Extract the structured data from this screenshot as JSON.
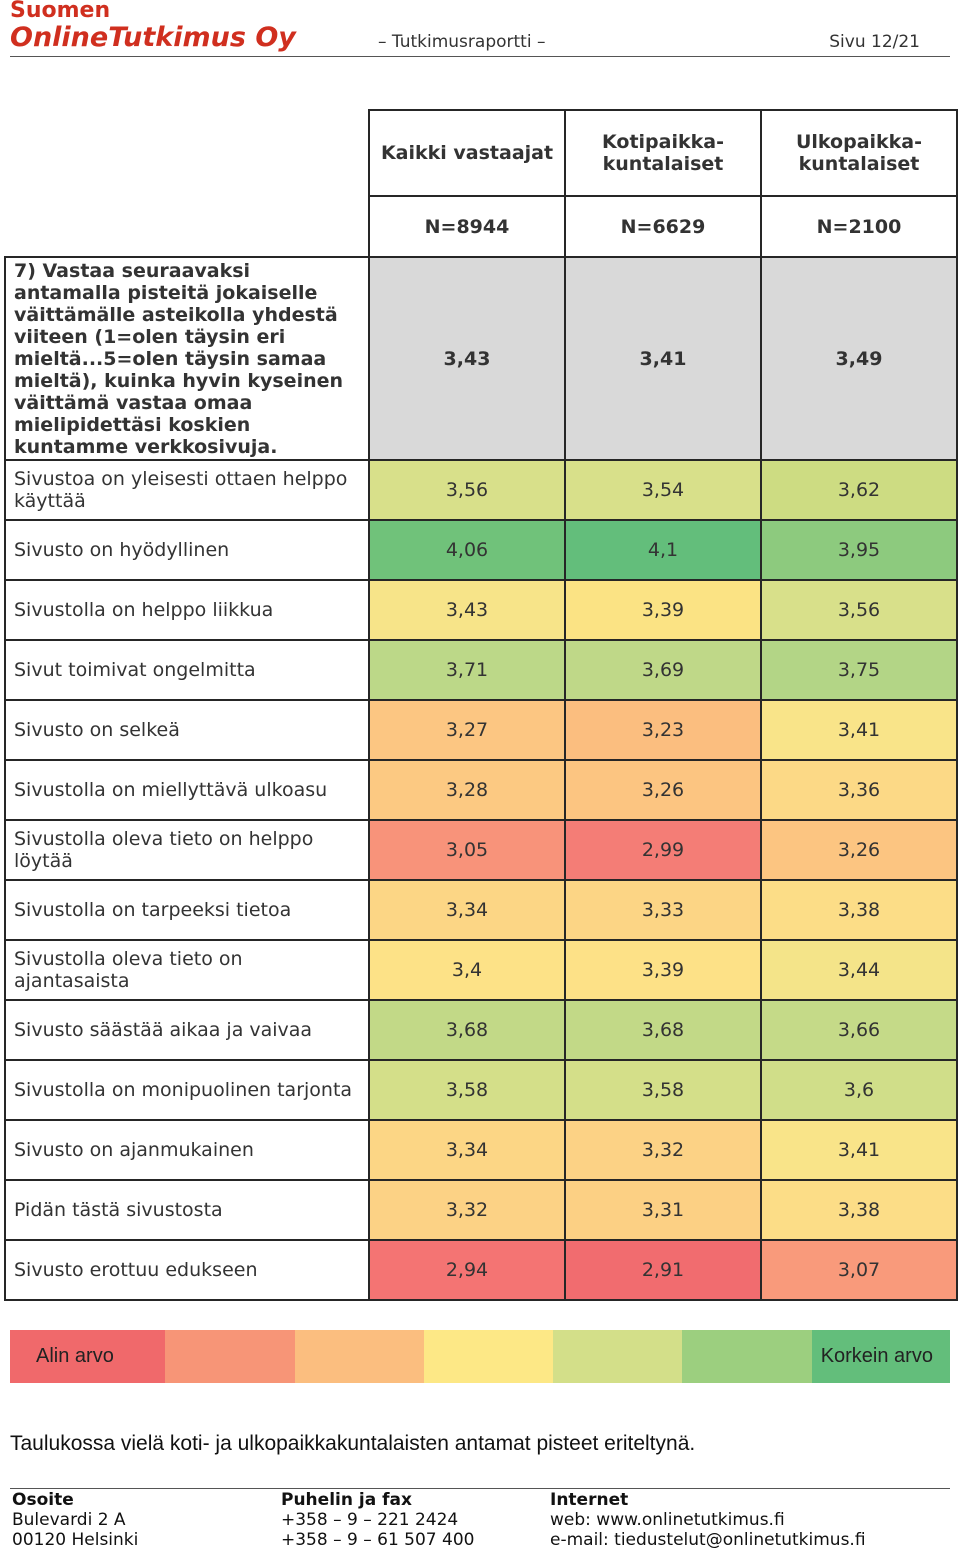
{
  "header": {
    "company_line1": "Suomen",
    "company_line2": "OnlineTutkimus Oy",
    "report_label": "– Tutkimusraportti –",
    "page_label": "Sivu 12/21"
  },
  "table": {
    "columns": [
      {
        "name": "Kaikki vastaajat",
        "n": "N=8944"
      },
      {
        "name": "Kotipaikka-\nkuntalaiset",
        "n": "N=6629"
      },
      {
        "name": "Ulkopaikka-\nkuntalaiset",
        "n": "N=2100"
      }
    ],
    "question": {
      "text": "7) Vastaa seuraavaksi antamalla pisteitä jokaiselle väittämälle asteikolla yhdestä viiteen (1=olen täysin eri mieltä...5=olen täysin samaa mieltä), kuinka hyvin kyseinen väittämä vastaa omaa mielipidettäsi koskien kuntamme verkkosivuja.",
      "values": [
        "3,43",
        "3,41",
        "3,49"
      ]
    },
    "rows": [
      {
        "label": "Sivustoa on yleisesti ottaen helppo käyttää",
        "values": [
          "3,56",
          "3,54",
          "3,62"
        ],
        "colors": [
          "#d8e08a",
          "#d8e08a",
          "#cddc82"
        ]
      },
      {
        "label": "Sivusto on hyödyllinen",
        "values": [
          "4,06",
          "4,1",
          "3,95"
        ],
        "colors": [
          "#70c27a",
          "#63be7b",
          "#8dca7e"
        ]
      },
      {
        "label": "Sivustolla on helppo liikkua",
        "values": [
          "3,43",
          "3,39",
          "3,56"
        ],
        "colors": [
          "#f7e489",
          "#fbe384",
          "#d8e08a"
        ]
      },
      {
        "label": "Sivut toimivat ongelmitta",
        "values": [
          "3,71",
          "3,69",
          "3,75"
        ],
        "colors": [
          "#bcd888",
          "#bfd888",
          "#b3d586"
        ]
      },
      {
        "label": "Sivusto on selkeä",
        "values": [
          "3,27",
          "3,23",
          "3,41"
        ],
        "colors": [
          "#fcc682",
          "#fbbe7f",
          "#f9e489"
        ]
      },
      {
        "label": "Sivustolla on miellyttävä ulkoasu",
        "values": [
          "3,28",
          "3,26",
          "3,36"
        ],
        "colors": [
          "#fcc982",
          "#fcc581",
          "#fcd986"
        ]
      },
      {
        "label": "Sivustolla oleva tieto on helppo löytää",
        "values": [
          "3,05",
          "2,99",
          "3,26"
        ],
        "colors": [
          "#f8937a",
          "#f47d76",
          "#fcc581"
        ]
      },
      {
        "label": "Sivustolla on tarpeeksi tietoa",
        "values": [
          "3,34",
          "3,33",
          "3,38"
        ],
        "colors": [
          "#fcd685",
          "#fcd585",
          "#fcdd87"
        ]
      },
      {
        "label": "Sivustolla oleva tieto on ajantasaista",
        "values": [
          "3,4",
          "3,39",
          "3,44"
        ],
        "colors": [
          "#fde287",
          "#fde187",
          "#f4e489"
        ]
      },
      {
        "label": "Sivusto säästää aikaa ja vaivaa",
        "values": [
          "3,68",
          "3,68",
          "3,66"
        ],
        "colors": [
          "#c2d987",
          "#c2d987",
          "#c5da88"
        ]
      },
      {
        "label": "Sivustolla on monipuolinen tarjonta",
        "values": [
          "3,58",
          "3,58",
          "3,6"
        ],
        "colors": [
          "#d4df89",
          "#d4df89",
          "#d0de89"
        ]
      },
      {
        "label": "Sivusto on ajanmukainen",
        "values": [
          "3,34",
          "3,32",
          "3,41"
        ],
        "colors": [
          "#fcd685",
          "#fcd285",
          "#f9e489"
        ]
      },
      {
        "label": "Pidän tästä sivustosta",
        "values": [
          "3,32",
          "3,31",
          "3,38"
        ],
        "colors": [
          "#fcd285",
          "#fcd084",
          "#fcdd87"
        ]
      },
      {
        "label": "Sivusto erottuu edukseen",
        "values": [
          "2,94",
          "2,91",
          "3,07"
        ],
        "colors": [
          "#f47473",
          "#f16c6f",
          "#f99a7b"
        ]
      }
    ]
  },
  "legend": {
    "low_label": "Alin arvo",
    "high_label": "Korkein arvo",
    "colors": [
      "#f0696b",
      "#f79577",
      "#fbbe7f",
      "#fde886",
      "#d3df89",
      "#9ccf7f",
      "#63be7b"
    ]
  },
  "note": "Taulukossa vielä koti- ja ulkopaikkakuntalaisten antamat pisteet eriteltynä.",
  "footer": {
    "address_head": "Osoite",
    "address_1": "Bulevardi 2 A",
    "address_2": "00120 Helsinki",
    "phone_head": "Puhelin ja fax",
    "phone_1": "+358 – 9 – 221 2424",
    "phone_2": "+358 – 9 – 61 507 400",
    "internet_head": "Internet",
    "internet_1": "web: www.onlinetutkimus.fi",
    "internet_2": "e-mail: tiedustelut@onlinetutkimus.fi"
  }
}
